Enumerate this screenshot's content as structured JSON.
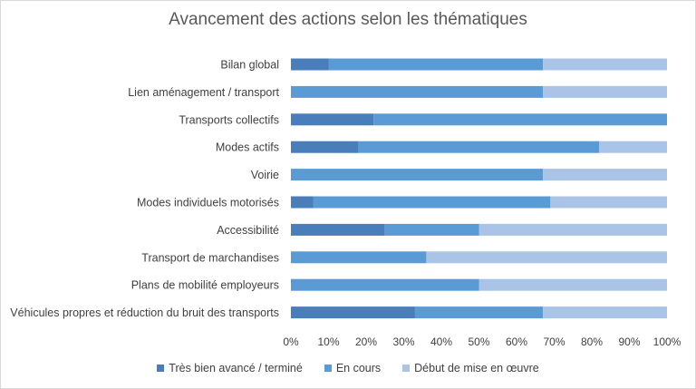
{
  "chart_data": {
    "type": "bar",
    "orientation": "horizontal",
    "stacked": true,
    "title": "Avancement des actions selon les thématiques",
    "categories": [
      "Bilan global",
      "Lien aménagement / transport",
      "Transports collectifs",
      "Modes actifs",
      "Voirie",
      "Modes individuels motorisés",
      "Accessibilité",
      "Transport de marchandises",
      "Plans de mobilité employeurs",
      "Véhicules propres et réduction du bruit des transports"
    ],
    "series": [
      {
        "name": "Très bien avancé / terminé",
        "color": "#4a7ebb",
        "values": [
          10,
          0,
          22,
          18,
          0,
          6,
          25,
          0,
          0,
          33
        ]
      },
      {
        "name": "En cours",
        "color": "#5b9bd5",
        "values": [
          57,
          67,
          78,
          64,
          67,
          63,
          25,
          36,
          50,
          34
        ]
      },
      {
        "name": "Début de mise en œuvre",
        "color": "#a9c4e6",
        "values": [
          33,
          33,
          0,
          18,
          33,
          31,
          50,
          64,
          50,
          33
        ]
      }
    ],
    "xlim": [
      0,
      100
    ],
    "xticks": [
      "0%",
      "10%",
      "20%",
      "30%",
      "40%",
      "50%",
      "60%",
      "70%",
      "80%",
      "90%",
      "100%"
    ],
    "grid": false,
    "legend_position": "bottom"
  }
}
